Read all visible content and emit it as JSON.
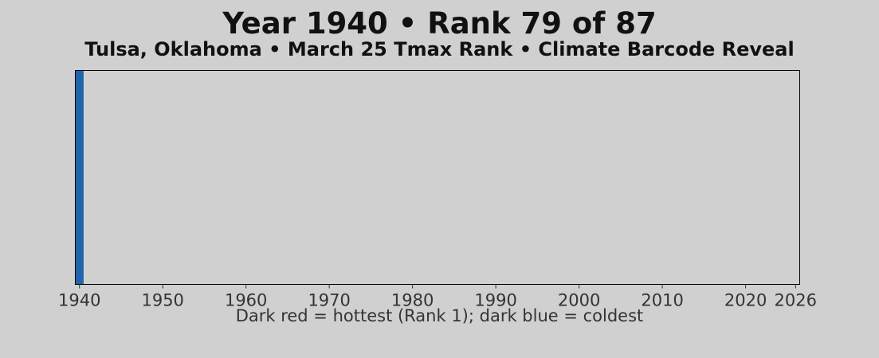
{
  "colors": {
    "background": "#d0d0d0",
    "plot_background": "#d0d0d0",
    "frame": "#000000",
    "text": "#111111",
    "secondary_text": "#333333",
    "bar": "#2166ac"
  },
  "chart_data": {
    "type": "bar",
    "title": "Year 1940 • Rank 79 of 87",
    "subtitle": "Tulsa, Oklahoma • March 25 Tmax Rank • Climate Barcode Reveal",
    "caption": "Dark red = hottest (Rank 1); dark blue = coldest",
    "xlabel": "",
    "ylabel": "",
    "xlim": [
      1939.5,
      2026.5
    ],
    "x_ticks": [
      1940,
      1950,
      1960,
      1970,
      1980,
      1990,
      2000,
      2010,
      2020,
      2026
    ],
    "bars": [
      {
        "year": 1940,
        "rank": 79,
        "color": "#2166ac"
      }
    ],
    "rank_total": 87,
    "grid": false,
    "y_axis_visible": false
  }
}
